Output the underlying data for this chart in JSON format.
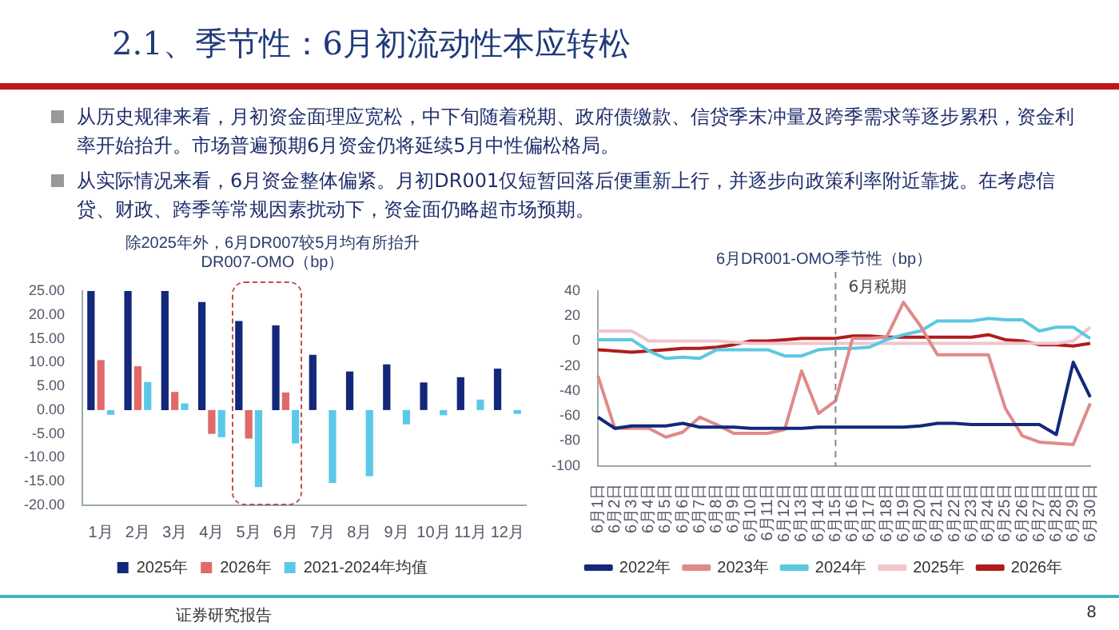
{
  "chart_data": [
    {
      "type": "other",
      "title": "2.1、季节性：6月初流动性本应转松",
      "annotations": [
        "从历史规律来看，月初资金面理应宽松，中下旬随着税期、政府债缴款、信贷季末冲量及跨季需求等逐步累积，资金利率开始抬升。市场普遍预期6月资金仍将延续5月中性偏松格局。",
        "从实际情况来看，6月资金整体偏紧。月初DR001仅短暂回落后便重新上行，并逐步向政策利率附近靠拢。在考虑信贷、财政、跨季等常规因素扰动下，资金面仍略超市场预期。",
        "证券研究报告",
        "8"
      ]
    },
    {
      "type": "bar",
      "title": "除2025年外，6月DR007较5月均有所抬升",
      "subtitle": "DR007-OMO（bp）",
      "categories": [
        "1月",
        "2月",
        "3月",
        "4月",
        "5月",
        "6月",
        "7月",
        "8月",
        "9月",
        "10月",
        "11月",
        "12月"
      ],
      "series": [
        {
          "name": "2025年",
          "color": "#13287a",
          "values": [
            25,
            25,
            25,
            22.7,
            18.7,
            17.8,
            11.6,
            8.1,
            9.6,
            5.8,
            6.9,
            8.7
          ]
        },
        {
          "name": "2026年",
          "color": "#e06a6a",
          "values": [
            10.5,
            9.2,
            3.8,
            -5,
            -6,
            3.7,
            null,
            null,
            null,
            null,
            null,
            null
          ]
        },
        {
          "name": "2021-2024年均值",
          "color": "#5cc8e8",
          "values": [
            -1,
            5.9,
            1.4,
            -5.7,
            -16.2,
            -7,
            -15.3,
            -13.9,
            -3,
            -1.1,
            2.2,
            -0.8
          ]
        }
      ],
      "ylim": [
        -20,
        25
      ],
      "yticks": [
        {
          "value": -20,
          "label": "-20.00"
        },
        {
          "value": -15,
          "label": "-15.00"
        },
        {
          "value": -10,
          "label": "-10.00"
        },
        {
          "value": -5,
          "label": "-5.00"
        },
        {
          "value": 0,
          "label": "0.00"
        },
        {
          "value": 5,
          "label": "5.00"
        },
        {
          "value": 10,
          "label": "10.00"
        },
        {
          "value": 15,
          "label": "15.00"
        },
        {
          "value": 20,
          "label": "20.00"
        },
        {
          "value": 25,
          "label": "25.00"
        }
      ],
      "grid": false,
      "legend": "bottom"
    },
    {
      "type": "line",
      "title": "6月DR001-OMO季节性（bp）",
      "categories": [
        "6月1日",
        "6月2日",
        "6月3日",
        "6月4日",
        "6月5日",
        "6月6日",
        "6月7日",
        "6月8日",
        "6月9日",
        "6月10日",
        "6月11日",
        "6月12日",
        "6月13日",
        "6月14日",
        "6月15日",
        "6月16日",
        "6月17日",
        "6月18日",
        "6月19日",
        "6月20日",
        "6月21日",
        "6月22日",
        "6月23日",
        "6月24日",
        "6月25日",
        "6月26日",
        "6月27日",
        "6月28日",
        "6月29日",
        "6月30日"
      ],
      "series": [
        {
          "name": "2022年",
          "color": "#13287a",
          "values": [
            -61,
            -70,
            -68,
            -68,
            -68,
            -66,
            -69,
            -69,
            -69,
            -70,
            -70,
            -70,
            -70,
            -69,
            -69,
            -69,
            -69,
            -69,
            -69,
            -68,
            -66,
            -66,
            -67,
            -67,
            -67,
            -67,
            -67,
            -75,
            -17,
            -45
          ]
        },
        {
          "name": "2023年",
          "color": "#e08a8a",
          "values": [
            -28,
            -70,
            -70,
            -70,
            -77,
            -73,
            -61,
            -67,
            -74,
            -74,
            -74,
            -71,
            -24,
            -58,
            -48,
            2,
            2,
            3,
            31,
            12,
            -11,
            -11,
            -11,
            -11,
            -54,
            -76,
            -81,
            -82,
            -83,
            -50
          ]
        },
        {
          "name": "2024年",
          "color": "#5cc8e0",
          "values": [
            1,
            1,
            1,
            -8,
            -14,
            -13,
            -14,
            -7,
            -7,
            -7,
            -7,
            -12,
            -12,
            -7,
            -6,
            -6,
            -5,
            1,
            5,
            8,
            16,
            16,
            16,
            18,
            17,
            17,
            8,
            11,
            11,
            2
          ]
        },
        {
          "name": "2025年",
          "color": "#f2c4cb",
          "values": [
            8,
            8,
            8,
            0,
            0,
            0,
            0,
            0,
            -1,
            -2,
            -2,
            -2,
            -2,
            -2,
            -2,
            -2,
            -2,
            -2,
            -2,
            -2,
            -2,
            -2,
            -2,
            -2,
            -2,
            -2,
            -2,
            -2,
            0,
            11
          ]
        },
        {
          "name": "2026年",
          "color": "#b01c1c",
          "values": [
            -7,
            -8,
            -9,
            -8,
            -7,
            -6,
            -6,
            -5,
            -3,
            0,
            0,
            1,
            2,
            2,
            2,
            4,
            4,
            3,
            3,
            3,
            3,
            3,
            3,
            5,
            1,
            0,
            -3,
            -3,
            -4,
            -2
          ]
        }
      ],
      "ylim": [
        -100,
        40
      ],
      "yticks": [
        -100,
        -80,
        -60,
        -40,
        -20,
        0,
        20,
        40
      ],
      "ref_lines": [
        {
          "axis": "x",
          "value": "6月15日",
          "label": "6月税期",
          "color": "#888888",
          "line_style": "dashed"
        }
      ],
      "grid": false,
      "legend": "bottom",
      "marker": "none",
      "line_style": "solid"
    }
  ]
}
